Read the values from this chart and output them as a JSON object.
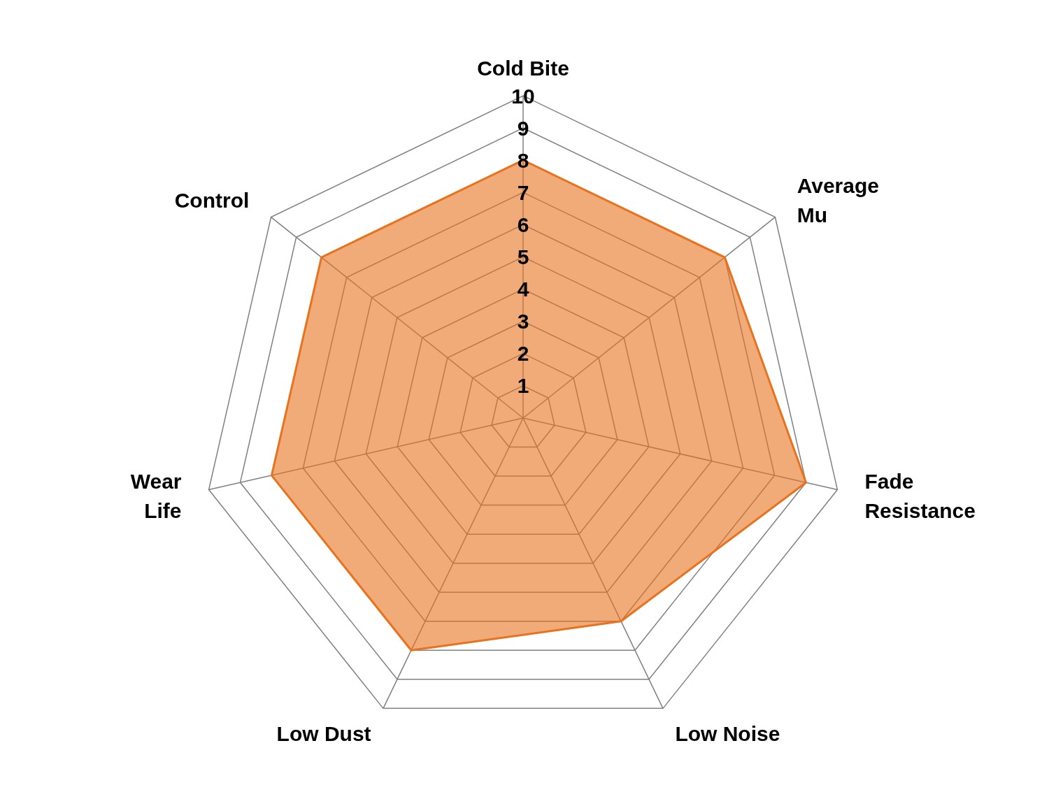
{
  "chart_data": {
    "type": "radar",
    "categories": [
      "Cold Bite",
      "Average Mu",
      "Fade Resistance",
      "Low Noise",
      "Low Dust",
      "Wear Life",
      "Control"
    ],
    "series": [
      {
        "color": "#e8731f",
        "values": [
          8,
          8,
          9,
          7,
          8,
          8,
          8
        ]
      }
    ],
    "ylim": [
      0,
      10
    ],
    "yticks": [
      1,
      2,
      3,
      4,
      5,
      6,
      7,
      8,
      9,
      10
    ],
    "grid": true
  }
}
